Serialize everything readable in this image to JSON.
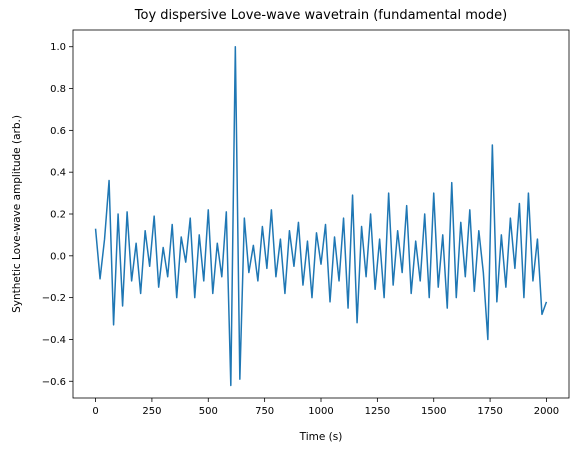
{
  "chart_data": {
    "type": "line",
    "title": "Toy dispersive Love-wave wavetrain (fundamental mode)",
    "xlabel": "Time (s)",
    "ylabel": "Synthetic Love-wave amplitude (arb.)",
    "x": [
      0,
      20,
      40,
      60,
      80,
      100,
      120,
      140,
      160,
      180,
      200,
      220,
      240,
      260,
      280,
      300,
      320,
      340,
      360,
      380,
      400,
      420,
      440,
      460,
      480,
      500,
      520,
      540,
      560,
      580,
      600,
      620,
      640,
      660,
      680,
      700,
      720,
      740,
      760,
      780,
      800,
      820,
      840,
      860,
      880,
      900,
      920,
      940,
      960,
      980,
      1000,
      1020,
      1040,
      1060,
      1080,
      1100,
      1120,
      1140,
      1160,
      1180,
      1200,
      1220,
      1240,
      1260,
      1280,
      1300,
      1320,
      1340,
      1360,
      1380,
      1400,
      1420,
      1440,
      1460,
      1480,
      1500,
      1520,
      1540,
      1560,
      1580,
      1600,
      1620,
      1640,
      1660,
      1680,
      1700,
      1720,
      1740,
      1760,
      1780,
      1800,
      1820,
      1840,
      1860,
      1880,
      1900,
      1920,
      1940,
      1960,
      1980,
      2000
    ],
    "series": [
      {
        "name": "amplitude",
        "color": "#1f77b4",
        "values": [
          0.13,
          -0.11,
          0.08,
          0.36,
          -0.33,
          0.2,
          -0.24,
          0.21,
          -0.12,
          0.06,
          -0.18,
          0.12,
          -0.05,
          0.19,
          -0.15,
          0.04,
          -0.1,
          0.15,
          -0.2,
          0.09,
          -0.03,
          0.18,
          -0.2,
          0.1,
          -0.12,
          0.22,
          -0.18,
          0.06,
          -0.1,
          0.21,
          -0.62,
          1.0,
          -0.59,
          0.18,
          -0.08,
          0.05,
          -0.12,
          0.14,
          -0.06,
          0.22,
          -0.1,
          0.08,
          -0.18,
          0.12,
          -0.05,
          0.16,
          -0.14,
          0.07,
          -0.2,
          0.11,
          -0.04,
          0.15,
          -0.22,
          0.09,
          -0.12,
          0.18,
          -0.25,
          0.29,
          -0.32,
          0.14,
          -0.1,
          0.2,
          -0.16,
          0.08,
          -0.2,
          0.3,
          -0.14,
          0.12,
          -0.08,
          0.24,
          -0.18,
          0.07,
          -0.12,
          0.2,
          -0.2,
          0.3,
          -0.15,
          0.1,
          -0.25,
          0.35,
          -0.2,
          0.16,
          -0.1,
          0.22,
          -0.17,
          0.12,
          -0.08,
          -0.4,
          0.53,
          -0.22,
          0.1,
          -0.15,
          0.18,
          -0.06,
          0.25,
          -0.2,
          0.3,
          -0.12,
          0.08,
          -0.28,
          -0.22
        ]
      }
    ],
    "xlim": [
      -100,
      2100
    ],
    "ylim": [
      -0.68,
      1.08
    ],
    "xticks": [
      0,
      250,
      500,
      750,
      1000,
      1250,
      1500,
      1750,
      2000
    ],
    "yticks": [
      {
        "value": -0.6,
        "label": "−0.6"
      },
      {
        "value": -0.4,
        "label": "−0.4"
      },
      {
        "value": -0.2,
        "label": "−0.2"
      },
      {
        "value": 0,
        "label": "0.0"
      },
      0.2,
      0.4,
      0.6,
      0.8,
      {
        "value": 1,
        "label": "1.0"
      }
    ]
  }
}
